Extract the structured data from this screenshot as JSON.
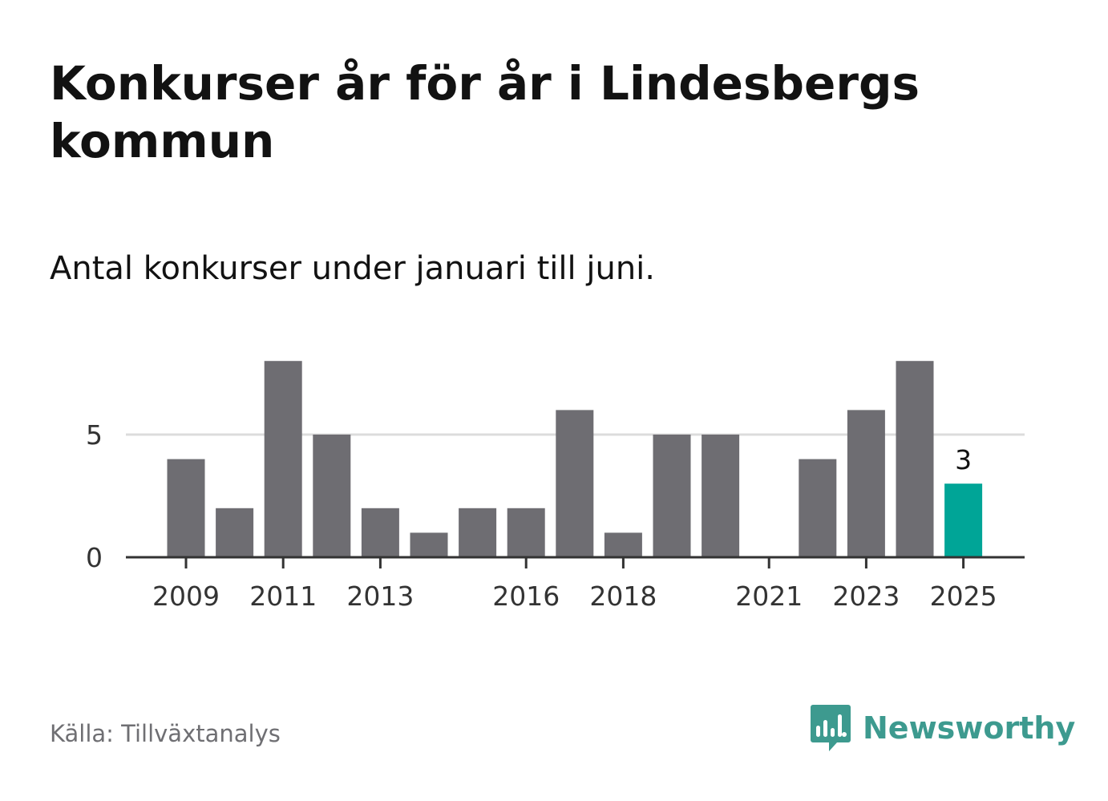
{
  "title": "Konkurser år för år i Lindesbergs kommun",
  "subtitle": "Antal konkurser under januari till juni.",
  "source": "Källa: Tillväxtanalys",
  "brand": {
    "name": "Newsworthy",
    "icon": "newsworthy-logo-icon",
    "color": "#3d9a8f"
  },
  "chart_data": {
    "type": "bar",
    "categories": [
      "2009",
      "2010",
      "2011",
      "2012",
      "2013",
      "2014",
      "2015",
      "2016",
      "2017",
      "2018",
      "2019",
      "2020",
      "2021",
      "2022",
      "2023",
      "2024",
      "2025"
    ],
    "values": [
      4,
      2,
      8,
      5,
      2,
      1,
      2,
      2,
      6,
      1,
      5,
      5,
      0,
      4,
      6,
      8,
      3
    ],
    "x_tick_labels": [
      "2009",
      "2011",
      "2013",
      "2016",
      "2018",
      "2021",
      "2023",
      "2025"
    ],
    "y_ticks": [
      0,
      5
    ],
    "ylim": [
      0,
      8
    ],
    "grid": true,
    "colors": {
      "default": "#6e6d72",
      "highlight": "#00a597"
    },
    "highlight_category": "2025",
    "data_labels": [
      {
        "category": "2025",
        "text": "3"
      }
    ]
  }
}
